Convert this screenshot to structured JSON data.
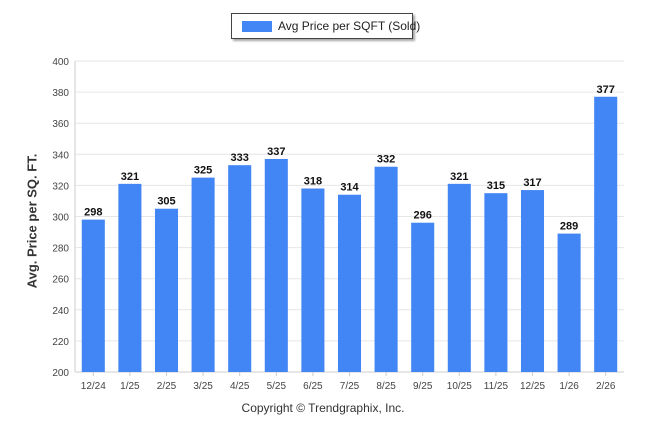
{
  "legend": {
    "label": "Avg Price per SQFT (Sold)"
  },
  "footer": {
    "copyright": "Copyright © Trendgraphix, Inc."
  },
  "colors": {
    "bar": "#4285f4",
    "grid": "#e6e6e6",
    "axis": "#cccccc",
    "text": "#333333"
  },
  "chart_data": {
    "type": "bar",
    "title": "",
    "xlabel": "",
    "ylabel": "Avg. Price per SQ. FT.",
    "ylim": [
      200,
      400
    ],
    "yticks": [
      200,
      220,
      240,
      260,
      280,
      300,
      320,
      340,
      360,
      380,
      400
    ],
    "grid": true,
    "legend_position": "top-center",
    "categories": [
      "12/24",
      "1/25",
      "2/25",
      "3/25",
      "4/25",
      "5/25",
      "6/25",
      "7/25",
      "8/25",
      "9/25",
      "10/25",
      "11/25",
      "12/25",
      "1/26",
      "2/26"
    ],
    "series": [
      {
        "name": "Avg Price per SQFT (Sold)",
        "values": [
          298,
          321,
          305,
          325,
          333,
          337,
          318,
          314,
          332,
          296,
          321,
          315,
          317,
          289,
          377
        ]
      }
    ]
  }
}
